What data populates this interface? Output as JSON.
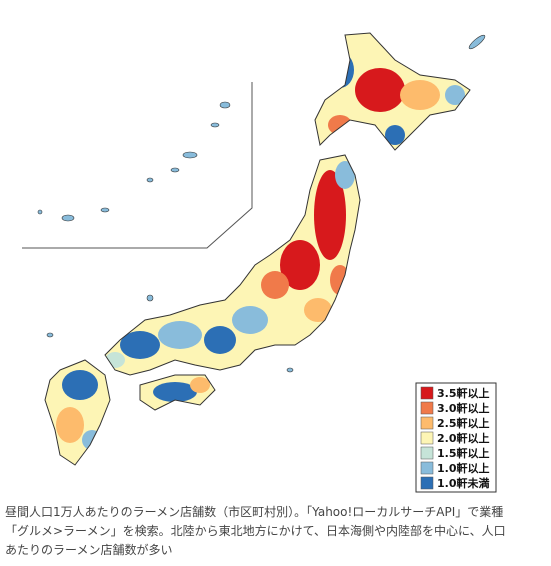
{
  "legend": [
    {
      "label": "3.5軒以上",
      "color": "#d7191c"
    },
    {
      "label": "3.0軒以上",
      "color": "#f07a4a"
    },
    {
      "label": "2.5軒以上",
      "color": "#fdbb6c"
    },
    {
      "label": "2.0軒以上",
      "color": "#fdf5b5"
    },
    {
      "label": "1.5軒以上",
      "color": "#c6e4d8"
    },
    {
      "label": "1.0軒以上",
      "color": "#89bcdb"
    },
    {
      "label": "1.0軒未満",
      "color": "#2c6fb5"
    }
  ],
  "caption": "昼間人口1万人あたりのラーメン店舗数（市区町村別）。「Yahoo!ローカルサーチAPI」で業種「グルメ>ラーメン」を検索。北陸から東北地方にかけて、日本海側や内陸部を中心に、人口あたりのラーメン店舗数が多い"
}
